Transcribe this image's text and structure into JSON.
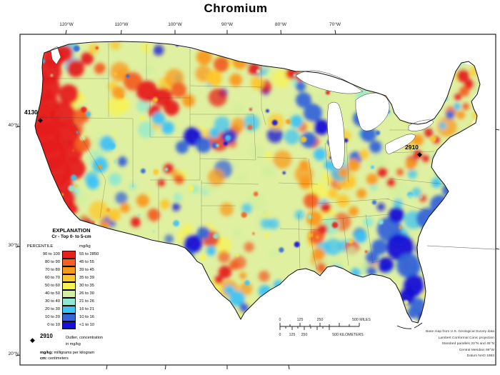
{
  "title": "Chromium",
  "axes": {
    "lon": [
      "120°W",
      "110°W",
      "100°W",
      "90°W",
      "80°W",
      "70°W"
    ],
    "lat": [
      "40°N",
      "30°N",
      "20°N"
    ]
  },
  "outliers": [
    {
      "value": "4130"
    },
    {
      "value": "2910"
    }
  ],
  "icons": {
    "outlier_diamond": "◆"
  },
  "legend": {
    "title": "EXPLANATION",
    "subtitle": "Cr - Top 0- to 5-cm",
    "percentile_header": "PERCENTILE",
    "unit_header": "mg/kg",
    "rows": [
      {
        "percentile": "90 to 100",
        "range": "55 to 2850",
        "color": "#e6201e"
      },
      {
        "percentile": "80 to 90",
        "range": "45 to 55",
        "color": "#f26025"
      },
      {
        "percentile": "70 to 80",
        "range": "39 to 45",
        "color": "#f9991c"
      },
      {
        "percentile": "60 to 70",
        "range": "35 to 39",
        "color": "#fdc72a"
      },
      {
        "percentile": "50 to 60",
        "range": "30 to 35",
        "color": "#f7f352"
      },
      {
        "percentile": "40 to 50",
        "range": "26 to 30",
        "color": "#d2ef9f"
      },
      {
        "percentile": "30 to 40",
        "range": "21 to 26",
        "color": "#8fe9d0"
      },
      {
        "percentile": "20 to 30",
        "range": "16 to 21",
        "color": "#3fc3f5"
      },
      {
        "percentile": "10 to 20",
        "range": "10 to 16",
        "color": "#3566d8"
      },
      {
        "percentile": "0 to 10",
        "range": "<1 to 10",
        "color": "#1410d6"
      }
    ],
    "outlier_key_value": "2910",
    "outlier_key_line1": "Outlier, concentration",
    "outlier_key_line2": "in mg/kg",
    "abbrev_mgkg_term": "mg/kg:",
    "abbrev_mgkg_def": " milligrams per kilogram",
    "abbrev_cm_term": "cm:",
    "abbrev_cm_def": " centimeters"
  },
  "scalebar": {
    "miles": [
      "0",
      "125",
      "250"
    ],
    "miles_end": "500 MILES",
    "km": [
      "0",
      "125",
      "250"
    ],
    "km_end": "500 KILOMETERS"
  },
  "credits": [
    "Base map from U.S. Geological Survey data",
    "Lambert Conformal Conic projection",
    "Standard parallels 33°N and 45°N",
    "Central Meridian 96°W",
    "Datum NAD 1983"
  ]
}
